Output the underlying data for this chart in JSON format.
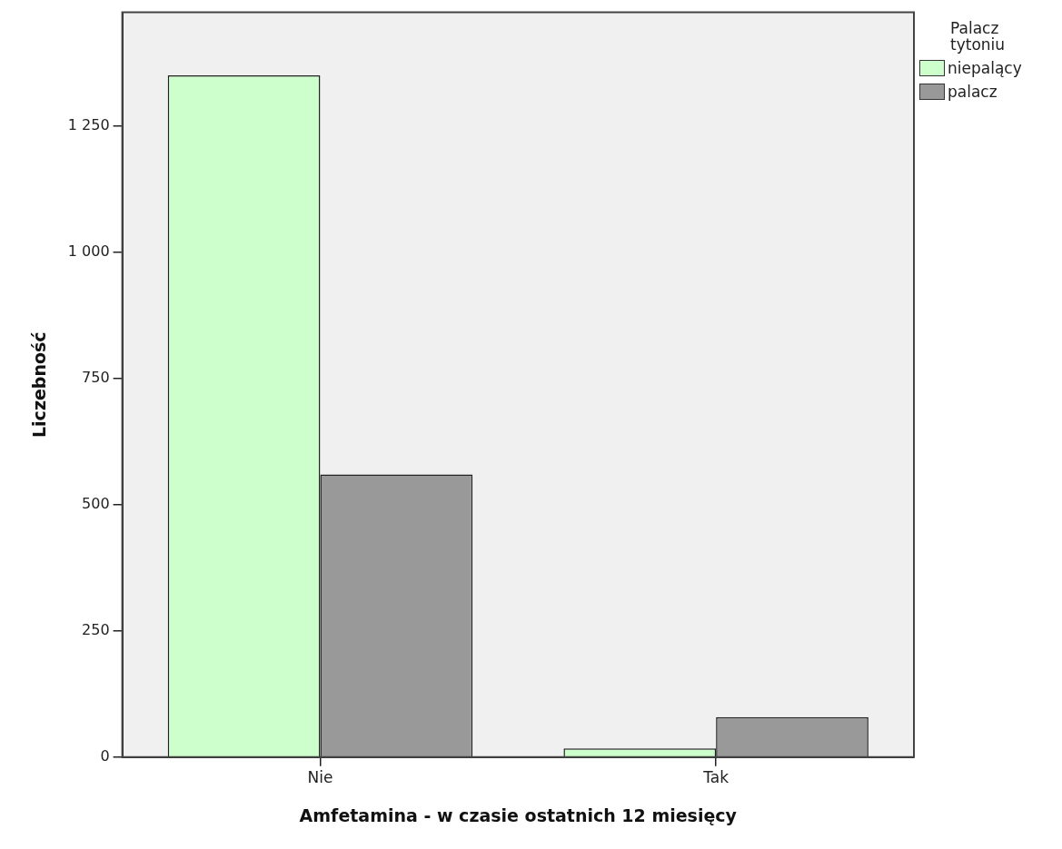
{
  "chart_data": {
    "type": "bar",
    "xlabel": "Amfetamina - w czasie ostatnich 12 miesięcy",
    "ylabel": "Liczebność",
    "legend_title": "Palacz tytoniu",
    "categories": [
      "Nie",
      "Tak"
    ],
    "series": [
      {
        "name": "niepalący",
        "color": "#ccffcc",
        "values": [
          1350,
          17
        ]
      },
      {
        "name": "palacz",
        "color": "#999999",
        "values": [
          560,
          79
        ]
      }
    ],
    "ylim": [
      0,
      1475
    ],
    "yticks": [
      0,
      250,
      500,
      750,
      {
        "value": 1000,
        "label": "1 000"
      },
      {
        "value": 1250,
        "label": "1 250"
      }
    ],
    "grid": false,
    "legend": "top right"
  }
}
